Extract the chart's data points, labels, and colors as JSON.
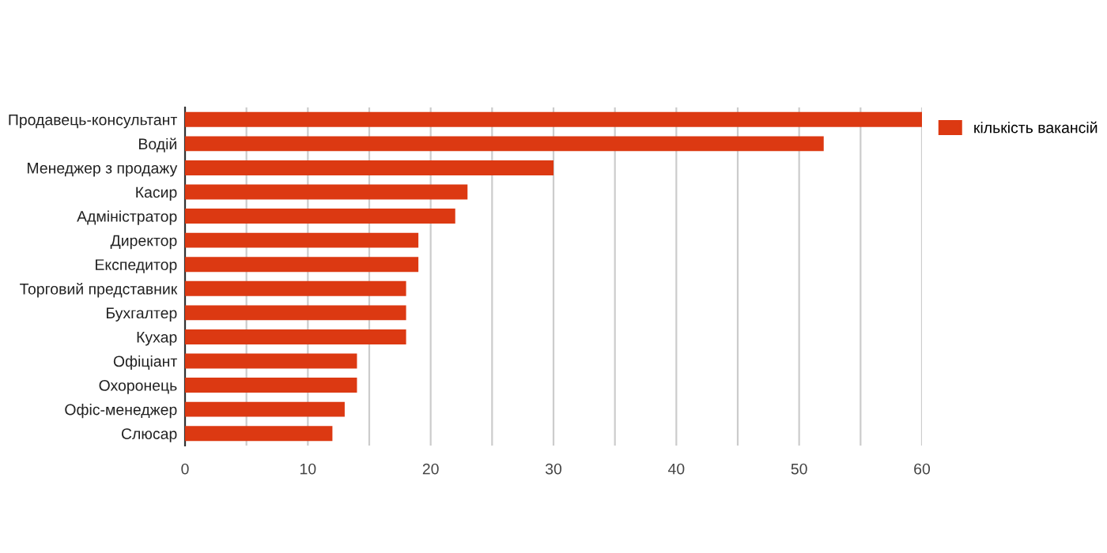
{
  "chart_data": {
    "type": "bar",
    "orientation": "horizontal",
    "categories": [
      "Продавець-консультант",
      "Водій",
      "Менеджер з продажу",
      "Касир",
      "Адміністратор",
      "Директор",
      "Експедитор",
      "Торговий представник",
      "Бухгалтер",
      "Кухар",
      "Офіціант",
      "Охоронець",
      "Офіс-менеджер",
      "Слюсар"
    ],
    "series": [
      {
        "name": "кількість вакансій",
        "color": "#dc3912",
        "values": [
          60,
          52,
          30,
          23,
          22,
          19,
          19,
          18,
          18,
          18,
          14,
          14,
          13,
          12
        ]
      }
    ],
    "xlim": [
      0,
      60
    ],
    "xticks": [
      0,
      {
        "value": 5,
        "label": null
      },
      10,
      {
        "value": 15,
        "label": null
      },
      20,
      {
        "value": 25,
        "label": null
      },
      30,
      {
        "value": 35,
        "label": null
      },
      40,
      {
        "value": 45,
        "label": null
      },
      50,
      {
        "value": 55,
        "label": null
      },
      60
    ],
    "grid": "x",
    "legend": "top right"
  }
}
